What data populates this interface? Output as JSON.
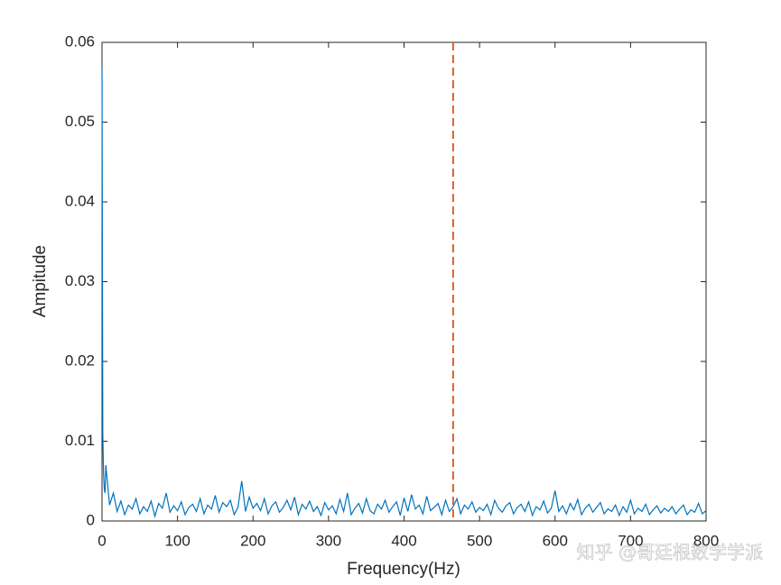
{
  "chart_data": {
    "type": "line",
    "x_label": "Frequency(Hz)",
    "y_label": "Ampitude",
    "color": "#0072bd",
    "x": [
      0,
      1,
      2,
      3,
      4,
      5,
      10,
      15,
      20,
      25,
      30,
      35,
      40,
      45,
      50,
      55,
      60,
      65,
      70,
      75,
      80,
      85,
      90,
      95,
      100,
      105,
      110,
      115,
      120,
      125,
      130,
      135,
      140,
      145,
      150,
      155,
      160,
      165,
      170,
      175,
      180,
      185,
      190,
      195,
      200,
      205,
      210,
      215,
      220,
      225,
      230,
      235,
      240,
      245,
      250,
      255,
      260,
      265,
      270,
      275,
      280,
      285,
      290,
      295,
      300,
      305,
      310,
      315,
      320,
      325,
      330,
      335,
      340,
      345,
      350,
      355,
      360,
      365,
      370,
      375,
      380,
      385,
      390,
      395,
      400,
      405,
      410,
      415,
      420,
      425,
      430,
      435,
      440,
      445,
      450,
      455,
      460,
      465,
      470,
      475,
      480,
      485,
      490,
      495,
      500,
      505,
      510,
      515,
      520,
      525,
      530,
      535,
      540,
      545,
      550,
      555,
      560,
      565,
      570,
      575,
      580,
      585,
      590,
      595,
      600,
      605,
      610,
      615,
      620,
      625,
      630,
      635,
      640,
      645,
      650,
      655,
      660,
      665,
      670,
      675,
      680,
      685,
      690,
      695,
      700,
      705,
      710,
      715,
      720,
      725,
      730,
      735,
      740,
      745,
      750,
      755,
      760,
      765,
      770,
      775,
      780,
      785,
      790,
      795,
      800
    ],
    "values": [
      0.057,
      0.011,
      0.006,
      0.004,
      0.0035,
      0.007,
      0.002,
      0.0035,
      0.0012,
      0.0025,
      0.0008,
      0.002,
      0.0015,
      0.0028,
      0.0009,
      0.0018,
      0.0012,
      0.0025,
      0.0006,
      0.0022,
      0.0016,
      0.0035,
      0.0011,
      0.0019,
      0.0013,
      0.0024,
      0.0008,
      0.0017,
      0.0021,
      0.0012,
      0.0028,
      0.0009,
      0.002,
      0.0015,
      0.0032,
      0.0011,
      0.0023,
      0.0018,
      0.0026,
      0.0008,
      0.0017,
      0.005,
      0.0012,
      0.003,
      0.0016,
      0.0022,
      0.0013,
      0.0028,
      0.0009,
      0.0019,
      0.0024,
      0.0011,
      0.0017,
      0.0026,
      0.0014,
      0.003,
      0.0008,
      0.0021,
      0.0015,
      0.0025,
      0.0012,
      0.0018,
      0.0007,
      0.0023,
      0.0014,
      0.0019,
      0.0009,
      0.0027,
      0.0012,
      0.0035,
      0.0008,
      0.0016,
      0.0022,
      0.001,
      0.0028,
      0.0013,
      0.0009,
      0.0021,
      0.0015,
      0.0026,
      0.0011,
      0.0018,
      0.0024,
      0.0007,
      0.0029,
      0.0012,
      0.0033,
      0.0015,
      0.002,
      0.0009,
      0.0031,
      0.0013,
      0.0017,
      0.0022,
      0.0008,
      0.0026,
      0.0012,
      0.0018,
      0.0028,
      0.0009,
      0.002,
      0.0015,
      0.0024,
      0.0011,
      0.0017,
      0.0013,
      0.0021,
      0.0008,
      0.0026,
      0.0016,
      0.0011,
      0.0019,
      0.0023,
      0.0009,
      0.0017,
      0.0021,
      0.0012,
      0.0024,
      0.0007,
      0.0018,
      0.0014,
      0.0025,
      0.001,
      0.0016,
      0.0038,
      0.0012,
      0.0019,
      0.0009,
      0.0022,
      0.0014,
      0.0027,
      0.0008,
      0.0016,
      0.0021,
      0.0011,
      0.0017,
      0.0023,
      0.0009,
      0.0015,
      0.0012,
      0.002,
      0.0007,
      0.0018,
      0.0011,
      0.0026,
      0.0009,
      0.0016,
      0.0012,
      0.0021,
      0.0008,
      0.0014,
      0.0019,
      0.001,
      0.0016,
      0.0012,
      0.0018,
      0.0009,
      0.0015,
      0.002,
      0.0008,
      0.0014,
      0.0011,
      0.0022,
      0.0009,
      0.0013
    ],
    "xlim": [
      0,
      800
    ],
    "xticks": [
      0,
      100,
      200,
      300,
      400,
      500,
      600,
      700,
      800
    ],
    "ylim": [
      0,
      0.06
    ],
    "yticks": [
      0,
      0.01,
      0.02,
      0.03,
      0.04,
      0.05,
      0.06
    ],
    "grid": false,
    "vline": {
      "x": 465,
      "color": "#d95319"
    }
  },
  "watermark": "知乎 @哥廷根数学学派"
}
